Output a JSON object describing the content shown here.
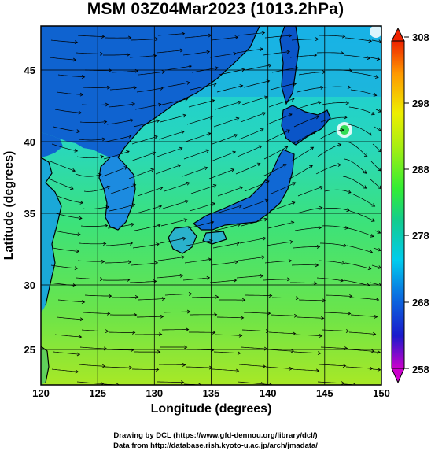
{
  "title": "MSM 03Z04Mar2023 (1013.2hPa)",
  "x_axis": {
    "label": "Longitude (degrees)",
    "ticks": [
      "120",
      "125",
      "130",
      "135",
      "140",
      "145",
      "150"
    ]
  },
  "y_axis": {
    "label": "Latitude  (degrees)",
    "ticks": [
      "25",
      "30",
      "35",
      "40",
      "45"
    ]
  },
  "colorbar": {
    "ticks": [
      "258",
      "268",
      "278",
      "288",
      "298",
      "308"
    ],
    "stops": [
      "#cc00cc",
      "#1a1acc",
      "#0a6ee0",
      "#00ccee",
      "#12cc90",
      "#33ee33",
      "#aaee11",
      "#eeee00",
      "#ff9900",
      "#ee2200"
    ]
  },
  "colors": {
    "land": "#0b5fd6",
    "sea_north": "#1fd4d8",
    "sea_mid": "#3ee27a",
    "sea_south": "#8fe632",
    "coast": "#000000",
    "streamline": "#000000"
  },
  "map": {
    "lon_range": [
      120,
      150
    ],
    "lat_range": [
      22.5,
      47.5
    ],
    "grid_lon": [
      120,
      125,
      130,
      135,
      140,
      145,
      150
    ],
    "grid_lat": [
      25,
      30,
      35,
      40,
      45
    ]
  },
  "credits": {
    "line1": "Drawing by DCL (https://www.gfd-dennou.org/library/dcl/)",
    "line2": "Data from http://database.rish.kyoto-u.ac.jp/arch/jmadata/"
  }
}
